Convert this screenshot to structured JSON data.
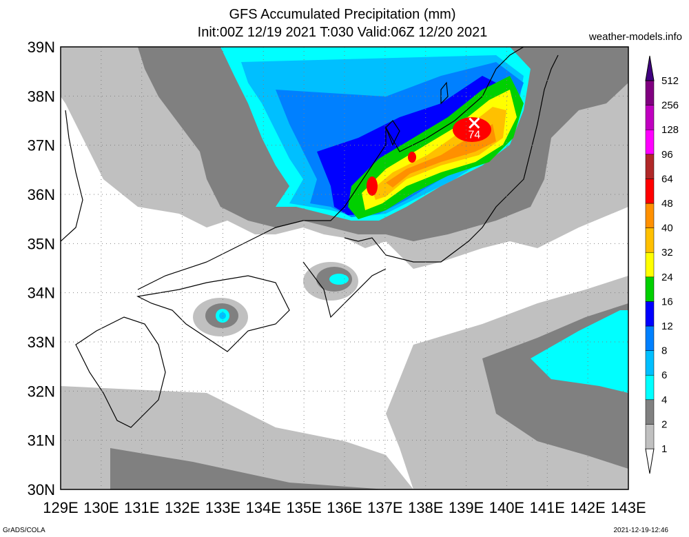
{
  "header": {
    "title_line1": "GFS Accumulated Precipitation (mm)",
    "title_line2": "Init:00Z 12/19 2021 T:030 Valid:06Z 12/20 2021",
    "site": "weather-models.info"
  },
  "footer": {
    "left": "GrADS/COLA",
    "right": "2021-12-19-12:46"
  },
  "map": {
    "lon_range": [
      129,
      143
    ],
    "lat_range": [
      30,
      39
    ],
    "lon_ticks": [
      "129E",
      "130E",
      "131E",
      "132E",
      "133E",
      "134E",
      "135E",
      "136E",
      "137E",
      "138E",
      "139E",
      "140E",
      "141E",
      "142E",
      "143E"
    ],
    "lat_ticks": [
      "30N",
      "31N",
      "32N",
      "33N",
      "34N",
      "35N",
      "36N",
      "37N",
      "38N",
      "39N"
    ],
    "grid": "dotted",
    "max_marker": {
      "lon": 139.2,
      "lat": 37.45,
      "label": "74"
    }
  },
  "colorbar": {
    "levels": [
      "1",
      "2",
      "4",
      "6",
      "8",
      "12",
      "16",
      "24",
      "32",
      "40",
      "48",
      "64",
      "96",
      "128",
      "256",
      "512"
    ],
    "colors": [
      "#ffffff",
      "#c0c0c0",
      "#808080",
      "#00ffff",
      "#00bfff",
      "#0080ff",
      "#0000ff",
      "#00d000",
      "#ffff00",
      "#ffc000",
      "#ff9000",
      "#ff0000",
      "#b02828",
      "#ff00ff",
      "#c000c0",
      "#800080",
      "#400080"
    ]
  }
}
